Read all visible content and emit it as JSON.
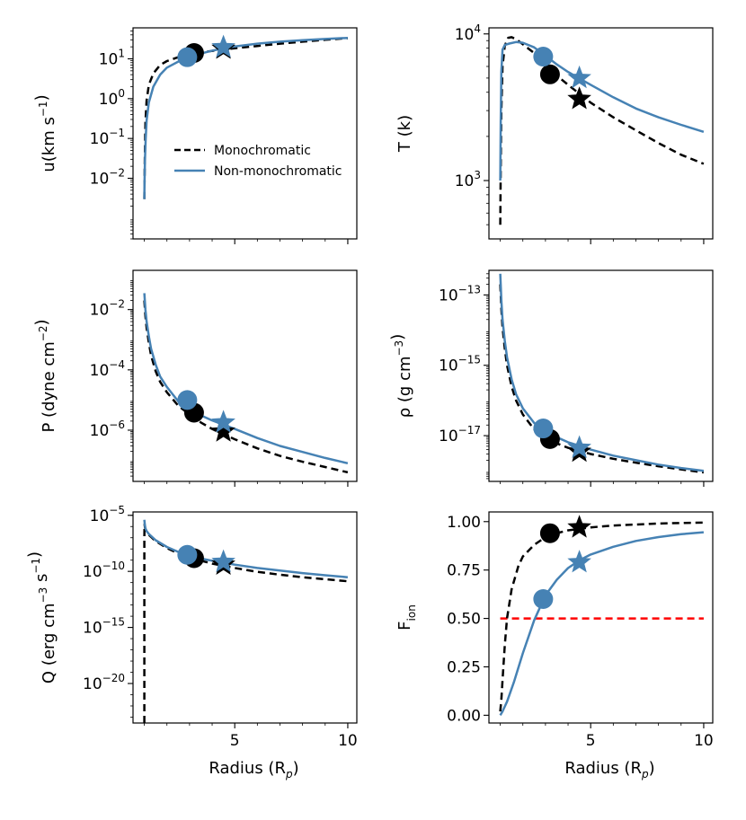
{
  "figure": {
    "legend": {
      "entries": [
        "Monochromatic",
        "Non-monochromatic"
      ],
      "placement": "center-right of top-left panel"
    },
    "colors": {
      "mono": "#000000",
      "nonmono": "#4682b4",
      "threshold": "#ff0000"
    },
    "xlabel": "Radius (R_p)"
  },
  "chart_data": [
    {
      "id": "u",
      "type": "line",
      "ylabel": "u(km s^-1)",
      "scale": "log",
      "ylim": [
        0.0003,
        60
      ],
      "ytick_labels": [
        "10^1",
        "10^0",
        "10^-1",
        "10^-2"
      ],
      "ytick_values": [
        10,
        1,
        0.1,
        0.01
      ],
      "xlim": [
        0.5,
        10.4
      ],
      "xtick_values": [
        5,
        10
      ],
      "xtick_labels": [
        "",
        ""
      ],
      "series": [
        {
          "name": "Monochromatic",
          "style": "dashed",
          "x": [
            1.0,
            1.02,
            1.05,
            1.1,
            1.2,
            1.4,
            1.7,
            2.0,
            2.5,
            3.0,
            4.0,
            5.0,
            6.0,
            7.0,
            8.0,
            9.0,
            10.0
          ],
          "y": [
            0.003,
            0.03,
            0.25,
            0.9,
            2.2,
            4.3,
            7.0,
            8.8,
            11.0,
            13.0,
            15.8,
            18.5,
            21.0,
            24.0,
            27.0,
            30.0,
            33.0
          ],
          "sonic_point": [
            3.2,
            14.0
          ],
          "ionization_front": [
            4.5,
            18.0
          ]
        },
        {
          "name": "Non-monochromatic",
          "style": "solid",
          "x": [
            1.0,
            1.01,
            1.03,
            1.06,
            1.1,
            1.2,
            1.4,
            1.7,
            2.0,
            2.5,
            3.0,
            4.0,
            5.0,
            6.0,
            7.0,
            8.0,
            9.0,
            10.0
          ],
          "y": [
            0.003,
            0.008,
            0.03,
            0.1,
            0.28,
            0.8,
            2.0,
            4.0,
            6.0,
            8.5,
            11.5,
            16.0,
            20.5,
            24.0,
            27.0,
            29.5,
            31.5,
            33.5
          ],
          "sonic_point": [
            2.9,
            11.0
          ],
          "ionization_front": [
            4.5,
            19.5
          ]
        }
      ]
    },
    {
      "id": "T",
      "type": "line",
      "ylabel": "T (k)",
      "scale": "log",
      "ylim": [
        400,
        11000
      ],
      "ytick_labels": [
        "10^4",
        "10^3"
      ],
      "ytick_values": [
        10000,
        1000
      ],
      "xlim": [
        0.5,
        10.4
      ],
      "xtick_values": [
        5,
        10
      ],
      "xtick_labels": [
        "",
        ""
      ],
      "series": [
        {
          "name": "Monochromatic",
          "style": "dashed",
          "x": [
            1.0,
            1.02,
            1.05,
            1.1,
            1.2,
            1.35,
            1.5,
            1.7,
            2.0,
            2.5,
            3.0,
            3.5,
            4.0,
            5.0,
            6.0,
            7.0,
            8.0,
            9.0,
            10.0
          ],
          "y": [
            500,
            1200,
            3000,
            6000,
            8300,
            9400,
            9500,
            9200,
            8500,
            7400,
            6200,
            5200,
            4500,
            3400,
            2700,
            2200,
            1800,
            1500,
            1300
          ],
          "sonic_point": [
            3.2,
            5300
          ],
          "ionization_front": [
            4.5,
            3600
          ]
        },
        {
          "name": "Non-monochromatic",
          "style": "solid",
          "x": [
            1.0,
            1.02,
            1.05,
            1.1,
            1.2,
            1.4,
            1.7,
            2.0,
            2.5,
            3.0,
            3.5,
            4.0,
            5.0,
            6.0,
            7.0,
            8.0,
            9.0,
            10.0
          ],
          "y": [
            1000,
            2500,
            5500,
            7800,
            8400,
            8600,
            8800,
            8700,
            8100,
            7100,
            6200,
            5500,
            4500,
            3700,
            3100,
            2700,
            2400,
            2150
          ],
          "sonic_point": [
            2.9,
            7000
          ],
          "ionization_front": [
            4.5,
            5000
          ]
        }
      ]
    },
    {
      "id": "P",
      "type": "line",
      "ylabel": "P (dyne cm^-2)",
      "scale": "log",
      "ylim": [
        2e-08,
        0.2
      ],
      "ytick_labels": [
        "10^-2",
        "10^-4",
        "10^-6"
      ],
      "ytick_values": [
        0.01,
        0.0001,
        1e-06
      ],
      "xlim": [
        0.5,
        10.4
      ],
      "xtick_values": [
        5,
        10
      ],
      "xtick_labels": [
        "",
        ""
      ],
      "series": [
        {
          "name": "Monochromatic",
          "style": "dashed",
          "x": [
            1.0,
            1.05,
            1.1,
            1.2,
            1.3,
            1.5,
            1.7,
            2.0,
            2.5,
            3.0,
            3.5,
            4.0,
            5.0,
            6.0,
            7.0,
            8.0,
            9.0,
            10.0
          ],
          "y": [
            0.02,
            0.006,
            0.0025,
            0.0008,
            0.0003,
            9e-05,
            4e-05,
            1.8e-05,
            6.5e-06,
            3.3e-06,
            1.8e-06,
            1.1e-06,
            5e-07,
            2.5e-07,
            1.4e-07,
            9e-08,
            6e-08,
            4e-08
          ],
          "sonic_point": [
            3.2,
            3.8e-06
          ],
          "ionization_front": [
            4.5,
            9e-07
          ]
        },
        {
          "name": "Non-monochromatic",
          "style": "solid",
          "x": [
            1.0,
            1.05,
            1.1,
            1.2,
            1.3,
            1.5,
            1.7,
            2.0,
            2.5,
            3.0,
            3.5,
            4.0,
            5.0,
            6.0,
            7.0,
            8.0,
            9.0,
            10.0
          ],
          "y": [
            0.035,
            0.01,
            0.004,
            0.0013,
            0.0005,
            0.00015,
            6e-05,
            2.7e-05,
            9e-06,
            5e-06,
            3.1e-06,
            2.1e-06,
            1.1e-06,
            5.5e-07,
            3e-07,
            1.9e-07,
            1.2e-07,
            8e-08
          ],
          "sonic_point": [
            2.9,
            1e-05
          ],
          "ionization_front": [
            4.5,
            1.8e-06
          ]
        }
      ]
    },
    {
      "id": "rho",
      "type": "line",
      "ylabel": "ρ (g cm^-3)",
      "scale": "log",
      "ylim": [
        5e-19,
        5e-13
      ],
      "ytick_labels": [
        "10^-13",
        "10^-15",
        "10^-17"
      ],
      "ytick_values": [
        1e-13,
        1e-15,
        1e-17
      ],
      "xlim": [
        0.5,
        10.4
      ],
      "xtick_values": [
        5,
        10
      ],
      "xtick_labels": [
        "",
        ""
      ],
      "series": [
        {
          "name": "Monochromatic",
          "style": "dashed",
          "x": [
            1.0,
            1.05,
            1.1,
            1.2,
            1.3,
            1.5,
            1.7,
            2.0,
            2.5,
            3.0,
            3.5,
            4.0,
            5.0,
            6.0,
            7.0,
            8.0,
            9.0,
            10.0
          ],
          "y": [
            2e-13,
            4e-14,
            1.2e-14,
            3e-15,
            1e-15,
            2.5e-16,
            1e-16,
            4e-17,
            1.5e-17,
            9e-18,
            6e-18,
            4.5e-18,
            3e-18,
            2.2e-18,
            1.7e-18,
            1.35e-18,
            1.1e-18,
            9e-19
          ],
          "sonic_point": [
            3.2,
            8e-18
          ],
          "ionization_front": [
            4.5,
            3.5e-18
          ]
        },
        {
          "name": "Non-monochromatic",
          "style": "solid",
          "x": [
            1.0,
            1.05,
            1.1,
            1.2,
            1.3,
            1.5,
            1.7,
            2.0,
            2.5,
            3.0,
            3.5,
            4.0,
            5.0,
            6.0,
            7.0,
            8.0,
            9.0,
            10.0
          ],
          "y": [
            4e-13,
            7e-14,
            2e-14,
            5e-15,
            1.7e-15,
            4e-16,
            1.5e-16,
            6e-17,
            2.3e-17,
            1.4e-17,
            9e-18,
            6.5e-18,
            4e-18,
            2.7e-18,
            2e-18,
            1.5e-18,
            1.2e-18,
            1e-18
          ],
          "sonic_point": [
            2.9,
            1.6e-17
          ],
          "ionization_front": [
            4.5,
            4.5e-18
          ]
        }
      ]
    },
    {
      "id": "Q",
      "type": "line",
      "ylabel": "Q (erg cm^-3 s^-1)",
      "scale": "log",
      "ylim": [
        3e-24,
        2e-05
      ],
      "ytick_labels": [
        "10^-5",
        "10^-10",
        "10^-15",
        "10^-20"
      ],
      "ytick_values": [
        1e-05,
        1e-10,
        1e-15,
        1e-20
      ],
      "xlim": [
        0.5,
        10.4
      ],
      "xtick_values": [
        5,
        10
      ],
      "xtick_labels": [
        "5",
        "10"
      ],
      "series": [
        {
          "name": "Monochromatic",
          "style": "dashed",
          "x": [
            1.0,
            1.0,
            1.01,
            1.05,
            1.1,
            1.2,
            1.5,
            2.0,
            2.5,
            3.0,
            3.5,
            4.0,
            5.0,
            6.0,
            7.0,
            8.0,
            9.0,
            10.0
          ],
          "y": [
            3e-24,
            1e-07,
            1.5e-06,
            5e-07,
            3e-07,
            1.8e-07,
            5e-08,
            1.2e-08,
            4e-09,
            1.8e-09,
            9e-10,
            5e-10,
            2e-10,
            9e-11,
            5e-11,
            3e-11,
            2e-11,
            1.3e-11
          ],
          "sonic_point": [
            3.2,
            1.5e-09
          ],
          "ionization_front": [
            4.5,
            4e-10
          ]
        },
        {
          "name": "Non-monochromatic",
          "style": "solid",
          "x": [
            1.0,
            1.02,
            1.05,
            1.1,
            1.2,
            1.5,
            2.0,
            2.5,
            3.0,
            3.5,
            4.0,
            5.0,
            6.0,
            7.0,
            8.0,
            9.0,
            10.0
          ],
          "y": [
            4e-06,
            1.5e-06,
            7e-07,
            4e-07,
            2.2e-07,
            6e-08,
            1.5e-08,
            5.5e-09,
            2.5e-09,
            1.4e-09,
            9e-10,
            4e-10,
            2e-10,
            1.2e-10,
            7e-11,
            4.5e-11,
            3e-11
          ],
          "sonic_point": [
            2.9,
            3e-09
          ],
          "ionization_front": [
            4.5,
            7e-10
          ]
        }
      ]
    },
    {
      "id": "F",
      "type": "line",
      "ylabel": "F_ion",
      "scale": "linear",
      "ylim": [
        -0.04,
        1.05
      ],
      "ytick_labels": [
        "1.00",
        "0.75",
        "0.50",
        "0.25",
        "0.00"
      ],
      "ytick_values": [
        1.0,
        0.75,
        0.5,
        0.25,
        0.0
      ],
      "xlim": [
        0.5,
        10.4
      ],
      "xtick_values": [
        5,
        10
      ],
      "xtick_labels": [
        "5",
        "10"
      ],
      "threshold": {
        "y": 0.5,
        "x_range": [
          1.0,
          10.0
        ],
        "style": "dashed",
        "color": "red"
      },
      "series": [
        {
          "name": "Monochromatic",
          "style": "dashed",
          "x": [
            1.0,
            1.05,
            1.1,
            1.2,
            1.3,
            1.5,
            1.8,
            2.0,
            2.5,
            3.0,
            3.5,
            4.0,
            5.0,
            6.0,
            7.0,
            8.0,
            9.0,
            10.0
          ],
          "y": [
            0.02,
            0.08,
            0.18,
            0.36,
            0.5,
            0.65,
            0.77,
            0.82,
            0.88,
            0.92,
            0.94,
            0.955,
            0.97,
            0.98,
            0.985,
            0.99,
            0.993,
            0.995
          ],
          "sonic_point": [
            3.2,
            0.94
          ],
          "ionization_front": [
            4.5,
            0.97
          ]
        },
        {
          "name": "Non-monochromatic",
          "style": "solid",
          "x": [
            1.0,
            1.1,
            1.3,
            1.6,
            2.0,
            2.5,
            3.0,
            3.5,
            4.0,
            4.5,
            5.0,
            6.0,
            7.0,
            8.0,
            9.0,
            10.0
          ],
          "y": [
            0.0,
            0.02,
            0.07,
            0.17,
            0.32,
            0.49,
            0.62,
            0.7,
            0.76,
            0.8,
            0.83,
            0.87,
            0.9,
            0.92,
            0.935,
            0.945
          ],
          "sonic_point": [
            2.9,
            0.6
          ],
          "ionization_front": [
            4.5,
            0.79
          ]
        }
      ]
    }
  ]
}
